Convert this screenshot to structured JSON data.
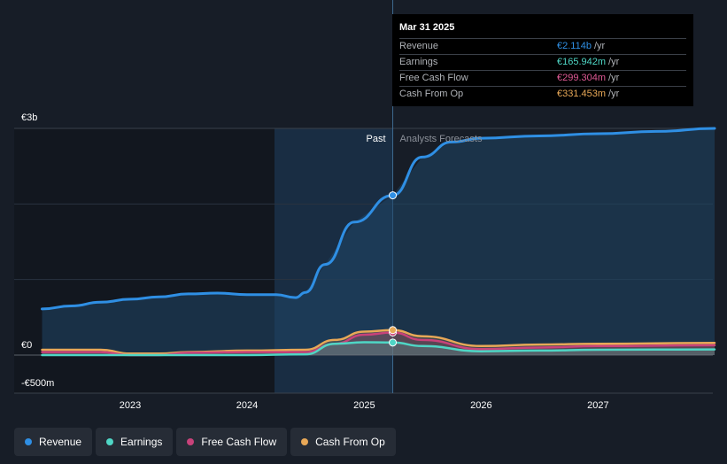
{
  "chart_data": {
    "type": "line",
    "x_axis": {
      "tick_labels": [
        "2023",
        "2024",
        "2025",
        "2026",
        "2027"
      ]
    },
    "y_axis": {
      "tick_labels": [
        "€3b",
        "€0",
        "-€500m"
      ],
      "ylim": [
        -500,
        3000
      ],
      "unit": "€m"
    },
    "regions": {
      "past_label": "Past",
      "forecast_label": "Analysts Forecasts",
      "divider_date": "2025-03-31"
    },
    "series": [
      {
        "name": "Revenue",
        "color": "#2f8fe4",
        "points": [
          [
            "2022-04-01",
            610
          ],
          [
            "2022-07-01",
            650
          ],
          [
            "2022-10-01",
            700
          ],
          [
            "2023-01-01",
            740
          ],
          [
            "2023-04-01",
            770
          ],
          [
            "2023-07-01",
            810
          ],
          [
            "2023-10-01",
            820
          ],
          [
            "2024-01-01",
            800
          ],
          [
            "2024-04-01",
            800
          ],
          [
            "2024-06-01",
            760
          ],
          [
            "2024-07-01",
            830
          ],
          [
            "2024-09-01",
            1200
          ],
          [
            "2024-12-01",
            1760
          ],
          [
            "2025-03-31",
            2114
          ],
          [
            "2025-07-01",
            2620
          ],
          [
            "2025-10-01",
            2820
          ],
          [
            "2026-01-01",
            2870
          ],
          [
            "2026-07-01",
            2900
          ],
          [
            "2027-01-01",
            2930
          ],
          [
            "2027-07-01",
            2960
          ],
          [
            "2027-12-31",
            3000
          ]
        ]
      },
      {
        "name": "Earnings",
        "color": "#4fd6c5",
        "points": [
          [
            "2022-04-01",
            0
          ],
          [
            "2023-01-01",
            0
          ],
          [
            "2024-01-01",
            0
          ],
          [
            "2024-07-01",
            10
          ],
          [
            "2024-10-01",
            150
          ],
          [
            "2025-01-01",
            170
          ],
          [
            "2025-03-31",
            166
          ],
          [
            "2025-07-01",
            120
          ],
          [
            "2026-01-01",
            50
          ],
          [
            "2026-07-01",
            60
          ],
          [
            "2027-01-01",
            70
          ],
          [
            "2027-12-31",
            75
          ]
        ]
      },
      {
        "name": "Free Cash Flow",
        "color": "#c8427a",
        "points": [
          [
            "2022-04-01",
            40
          ],
          [
            "2022-10-01",
            40
          ],
          [
            "2023-01-01",
            0
          ],
          [
            "2023-04-01",
            0
          ],
          [
            "2023-07-01",
            30
          ],
          [
            "2024-01-01",
            40
          ],
          [
            "2024-07-01",
            40
          ],
          [
            "2024-10-01",
            150
          ],
          [
            "2025-01-01",
            270
          ],
          [
            "2025-03-31",
            299
          ],
          [
            "2025-07-01",
            200
          ],
          [
            "2026-01-01",
            80
          ],
          [
            "2026-07-01",
            100
          ],
          [
            "2027-01-01",
            120
          ],
          [
            "2027-12-31",
            130
          ]
        ]
      },
      {
        "name": "Cash From Op",
        "color": "#e8a857",
        "points": [
          [
            "2022-04-01",
            70
          ],
          [
            "2022-10-01",
            70
          ],
          [
            "2023-01-01",
            20
          ],
          [
            "2023-04-01",
            20
          ],
          [
            "2023-07-01",
            40
          ],
          [
            "2024-01-01",
            60
          ],
          [
            "2024-07-01",
            70
          ],
          [
            "2024-10-01",
            200
          ],
          [
            "2025-01-01",
            310
          ],
          [
            "2025-03-31",
            331
          ],
          [
            "2025-07-01",
            250
          ],
          [
            "2026-01-01",
            120
          ],
          [
            "2026-07-01",
            140
          ],
          [
            "2027-01-01",
            150
          ],
          [
            "2027-12-31",
            160
          ]
        ]
      }
    ],
    "grid": true
  },
  "tooltip": {
    "date": "Mar 31 2025",
    "rows": [
      {
        "label": "Revenue",
        "value": "€2.114b",
        "unit": "/yr",
        "color": "#2f8fe4"
      },
      {
        "label": "Earnings",
        "value": "€165.942m",
        "unit": "/yr",
        "color": "#4fd6c5"
      },
      {
        "label": "Free Cash Flow",
        "value": "€299.304m",
        "unit": "/yr",
        "color": "#c8427a"
      },
      {
        "label": "Cash From Op",
        "value": "€331.453m",
        "unit": "/yr",
        "color": "#e8a857"
      }
    ]
  },
  "legend": [
    {
      "label": "Revenue",
      "color": "#2f8fe4"
    },
    {
      "label": "Earnings",
      "color": "#4fd6c5"
    },
    {
      "label": "Free Cash Flow",
      "color": "#c8427a"
    },
    {
      "label": "Cash From Op",
      "color": "#e8a857"
    }
  ]
}
